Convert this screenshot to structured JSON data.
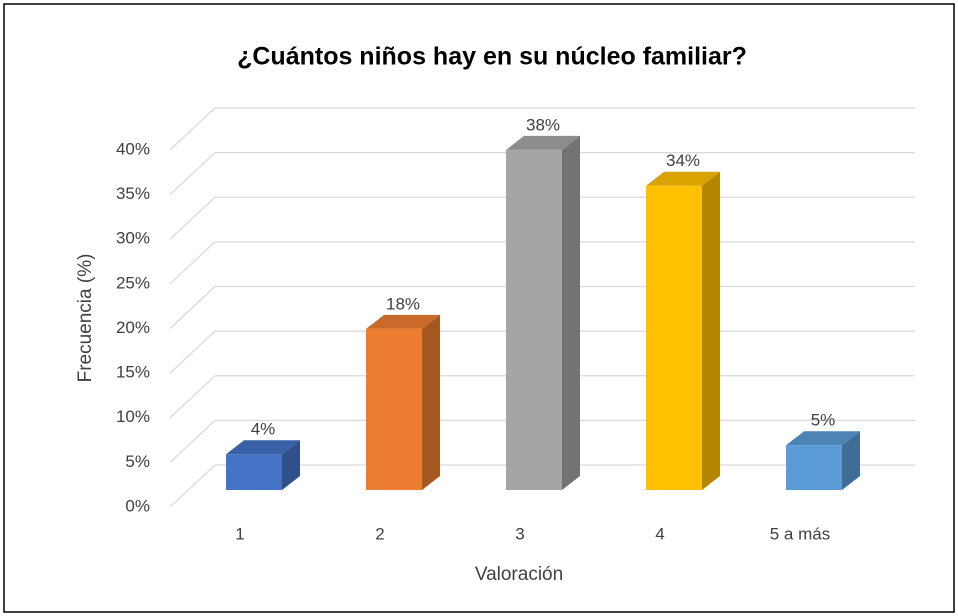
{
  "chart_data": {
    "type": "bar3d",
    "title": "¿Cuántos niños hay en su núcleo familiar?",
    "x_label": "Valoración",
    "y_label": "Frecuencia (%)",
    "categories": [
      "1",
      "2",
      "3",
      "4",
      "5 a más"
    ],
    "values": [
      4,
      18,
      38,
      34,
      5
    ],
    "value_labels": [
      "4%",
      "18%",
      "38%",
      "34%",
      "5%"
    ],
    "colors": [
      "#4472c4",
      "#ed7d31",
      "#a5a5a5",
      "#ffc000",
      "#5b9bd5"
    ],
    "ylim": [
      0,
      40
    ],
    "yticks": [
      {
        "value": 0,
        "label": "0%"
      },
      {
        "value": 5,
        "label": "5%"
      },
      {
        "value": 10,
        "label": "10%"
      },
      {
        "value": 15,
        "label": "15%"
      },
      {
        "value": 20,
        "label": "20%"
      },
      {
        "value": 25,
        "label": "25%"
      },
      {
        "value": 30,
        "label": "30%"
      },
      {
        "value": 35,
        "label": "35%"
      },
      {
        "value": 40,
        "label": "40%"
      }
    ],
    "grid": true
  }
}
